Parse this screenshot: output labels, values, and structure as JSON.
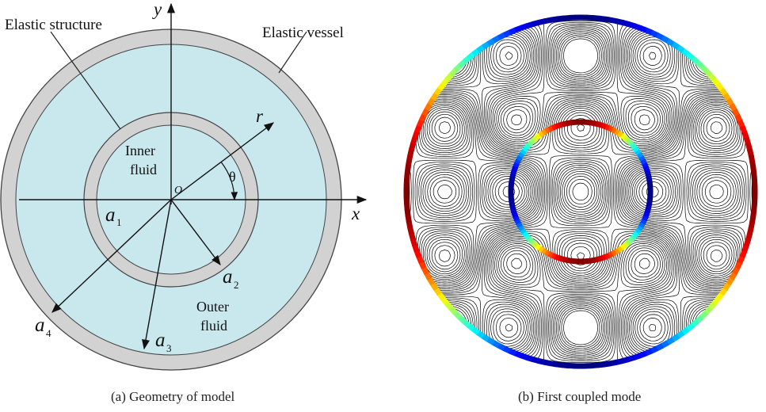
{
  "panel_a": {
    "caption": "(a) Geometry of model",
    "label_elastic_structure": "Elastic structure",
    "label_elastic_vessel": "Elastic vessel",
    "label_inner_fluid_1": "Inner",
    "label_inner_fluid_2": "fluid",
    "label_outer_fluid_1": "Outer",
    "label_outer_fluid_2": "fluid",
    "axis_x": "x",
    "axis_y": "y",
    "axis_r": "r",
    "angle_theta": "θ",
    "origin": "O",
    "a1": "a",
    "a1_sub": "1",
    "a2": "a",
    "a2_sub": "2",
    "a3": "a",
    "a3_sub": "3",
    "a4": "a",
    "a4_sub": "4",
    "colors": {
      "fluid": "#c9e8ee",
      "wall": "#d2d2d2",
      "wall_edge": "#444444"
    }
  },
  "panel_b": {
    "caption": "(b) First coupled mode",
    "colormap": "jet",
    "streamline_color": "#000000"
  }
}
